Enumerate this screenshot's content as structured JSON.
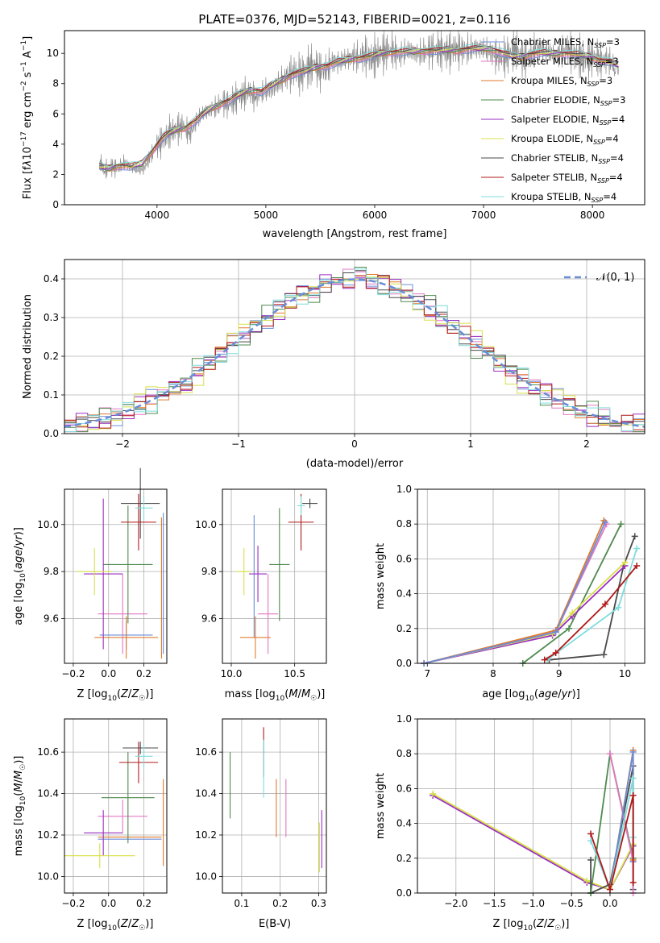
{
  "figure": {
    "title": "PLATE=0376, MJD=52143, FIBERID=0021, z=0.116"
  },
  "chart_data": [
    {
      "type": "line",
      "panel": "spectrum",
      "xlabel": "wavelength [Angstrom, rest frame]",
      "ylabel": "Flux [f_λ10^-17 erg cm^-2 s^-1 A^-1]",
      "xlim": [
        3150,
        8480
      ],
      "ylim": [
        0,
        11.5
      ],
      "xticks": [
        4000,
        5000,
        6000,
        7000,
        8000
      ],
      "yticks": [
        0,
        2,
        4,
        6,
        8,
        10
      ],
      "grid": false,
      "legend_position": "top-right",
      "data": {
        "name": "",
        "color": "#808080",
        "x": [
          3470,
          3520,
          3580,
          3640,
          3700,
          3760,
          3820,
          3880,
          3940,
          4000,
          4060,
          4120,
          4180,
          4240,
          4300,
          4360,
          4420,
          4480,
          4540,
          4600,
          4660,
          4720,
          4780,
          4840,
          4900,
          4960,
          5020,
          5080,
          5140,
          5200,
          5260,
          5320,
          5380,
          5440,
          5500,
          5560,
          5620,
          5680,
          5740,
          5800,
          5860,
          5920,
          5980,
          6040,
          6100,
          6160,
          6220,
          6280,
          6340,
          6400,
          6460,
          6520,
          6580,
          6640,
          6700,
          6760,
          6820,
          6880,
          6940,
          7000,
          7060,
          7120,
          7180,
          7240,
          7300,
          7360,
          7420,
          7480,
          7540,
          7600,
          7660,
          7720,
          7780,
          7840,
          7900,
          7960,
          8020,
          8080,
          8140,
          8200,
          8240
        ],
        "y": [
          2.6,
          2.3,
          2.5,
          2.4,
          2.8,
          2.5,
          2.3,
          2.4,
          3.2,
          3.9,
          4.3,
          4.8,
          5.0,
          5.2,
          4.7,
          5.5,
          6.0,
          6.3,
          6.4,
          6.8,
          6.6,
          7.0,
          7.2,
          7.5,
          7.1,
          7.4,
          7.6,
          7.8,
          8.2,
          8.5,
          8.8,
          8.6,
          9.0,
          9.3,
          8.8,
          9.0,
          9.5,
          9.4,
          9.6,
          9.8,
          9.7,
          9.9,
          9.6,
          10.0,
          10.1,
          10.2,
          9.9,
          10.1,
          10.2,
          10.0,
          10.1,
          10.2,
          10.3,
          10.1,
          10.2,
          10.3,
          10.2,
          10.3,
          10.4,
          10.3,
          10.1,
          9.8,
          9.7,
          10.0,
          10.3,
          9.6,
          9.8,
          10.2,
          10.3,
          10.0,
          9.9,
          10.1,
          10.3,
          9.8,
          9.7,
          9.6,
          9.8,
          9.5,
          9.6,
          9.2,
          9.0
        ]
      },
      "series": [
        {
          "name": "Chabrier MILES, N_SSP=3",
          "color": "#6a8dd8"
        },
        {
          "name": "Salpeter MILES, N_SSP=3",
          "color": "#e377c2"
        },
        {
          "name": "Kroupa MILES, N_SSP=3",
          "color": "#e07a2e"
        },
        {
          "name": "Chabrier ELODIE, N_SSP=3",
          "color": "#4f8a4f"
        },
        {
          "name": "Salpeter ELODIE, N_SSP=4",
          "color": "#9a2fc0"
        },
        {
          "name": "Kroupa ELODIE, N_SSP=4",
          "color": "#d8e04a"
        },
        {
          "name": "Chabrier STELIB, N_SSP=4",
          "color": "#4a4a4a"
        },
        {
          "name": "Salpeter STELIB, N_SSP=4",
          "color": "#b01818"
        },
        {
          "name": "Kroupa STELIB, N_SSP=4",
          "color": "#7fdcdc"
        }
      ],
      "model": {
        "color": "#7fdcdc",
        "x": [
          3470,
          3560,
          3660,
          3760,
          3860,
          3960,
          4060,
          4160,
          4260,
          4360,
          4460,
          4560,
          4660,
          4760,
          4860,
          4960,
          5060,
          5160,
          5260,
          5360,
          5460,
          5560,
          5660,
          5760,
          5860,
          5960,
          6060,
          6160,
          6260,
          6360,
          6460,
          6560,
          6660,
          6760,
          6860,
          6960,
          7060,
          7160,
          7260,
          7360,
          7460,
          7560,
          7660,
          7760,
          7860,
          7960,
          8060,
          8160,
          8240
        ],
        "y": [
          2.5,
          2.4,
          2.6,
          2.5,
          2.7,
          3.6,
          4.5,
          4.9,
          5.1,
          5.6,
          6.2,
          6.6,
          6.9,
          7.3,
          7.6,
          7.5,
          7.9,
          8.3,
          8.7,
          8.8,
          9.1,
          9.2,
          9.4,
          9.6,
          9.7,
          9.8,
          10.0,
          10.1,
          10.1,
          10.1,
          10.2,
          10.2,
          10.2,
          10.2,
          10.3,
          10.3,
          10.3,
          10.1,
          9.8,
          9.8,
          10.0,
          10.0,
          10.0,
          10.0,
          9.9,
          9.8,
          9.6,
          9.4,
          9.2
        ]
      }
    },
    {
      "type": "line",
      "panel": "residual-histogram",
      "xlabel": "(data-model)/error",
      "ylabel": "Normed distribution",
      "xlim": [
        -2.5,
        2.5
      ],
      "ylim": [
        0,
        0.45
      ],
      "xticks": [
        -2,
        -1,
        0,
        1,
        2
      ],
      "yticks": [
        0.0,
        0.1,
        0.2,
        0.3,
        0.4
      ],
      "grid": true,
      "legend_position": "top-right",
      "reference_curve": {
        "name": "𝒩(0, 1)",
        "color": "#6a8dd8",
        "style": "dashed",
        "mean": 0,
        "sigma": 1
      },
      "bin_edges": [
        -2.5,
        -2.4,
        -2.3,
        -2.2,
        -2.1,
        -2.0,
        -1.9,
        -1.8,
        -1.7,
        -1.6,
        -1.5,
        -1.4,
        -1.3,
        -1.2,
        -1.1,
        -1.0,
        -0.9,
        -0.8,
        -0.7,
        -0.6,
        -0.5,
        -0.4,
        -0.3,
        -0.2,
        -0.1,
        0.0,
        0.1,
        0.2,
        0.3,
        0.4,
        0.5,
        0.6,
        0.7,
        0.8,
        0.9,
        1.0,
        1.1,
        1.2,
        1.3,
        1.4,
        1.5,
        1.6,
        1.7,
        1.8,
        1.9,
        2.0,
        2.1,
        2.2,
        2.3,
        2.4,
        2.5
      ],
      "histograms": [
        {
          "color": "#6a8dd8",
          "offset": 0.012
        },
        {
          "color": "#e377c2",
          "offset": -0.01
        },
        {
          "color": "#e07a2e",
          "offset": 0.005
        },
        {
          "color": "#4f8a4f",
          "offset": -0.018
        },
        {
          "color": "#9a2fc0",
          "offset": 0.015
        },
        {
          "color": "#d8e04a",
          "offset": 0.02
        },
        {
          "color": "#4a4a4a",
          "offset": -0.006
        },
        {
          "color": "#b01818",
          "offset": 0.008
        },
        {
          "color": "#7fdcdc",
          "offset": -0.014
        }
      ]
    },
    {
      "type": "scatter",
      "panel": "age-vs-Z",
      "xlabel": "Z [log₁₀(Z/Z☉)]",
      "ylabel": "age  [log₁₀(age/yr)]",
      "xlim": [
        -0.25,
        0.33
      ],
      "ylim": [
        9.41,
        10.15
      ],
      "xticks": [
        -0.2,
        0.0,
        0.2
      ],
      "yticks": [
        9.6,
        9.8,
        10.0
      ],
      "grid": true,
      "points": [
        {
          "color": "#6a8dd8",
          "x": 0.1,
          "xerr": 0.15,
          "y": 9.53,
          "yerr": 0.06
        },
        {
          "color": "#e377c2",
          "x": 0.08,
          "xerr": 0.14,
          "y": 9.62,
          "yerr": 0.17
        },
        {
          "color": "#e07a2e",
          "x": 0.1,
          "xerr": 0.18,
          "y": 9.52,
          "yerr": 0.09
        },
        {
          "color": "#4f8a4f",
          "x": 0.11,
          "xerr": 0.14,
          "y": 9.83,
          "yerr": 0.25
        },
        {
          "color": "#9a2fc0",
          "x": -0.03,
          "xerr": 0.11,
          "y": 9.79,
          "yerr": 0.32
        },
        {
          "color": "#d8e04a",
          "x": -0.08,
          "xerr": 0.1,
          "y": 9.8,
          "yerr": 0.1
        },
        {
          "color": "#4a4a4a",
          "x": 0.18,
          "xerr": 0.11,
          "y": 10.09,
          "yerr": 0.15
        },
        {
          "color": "#b01818",
          "x": 0.17,
          "xerr": 0.1,
          "y": 10.01,
          "yerr": 0.12
        },
        {
          "color": "#7fdcdc",
          "x": 0.2,
          "xerr": 0.05,
          "y": 10.07,
          "yerr": 0.05
        },
        {
          "color": "#e07a2e",
          "x": 0.3,
          "xerr": 0.0,
          "y": 9.73,
          "yerr": 0.3
        },
        {
          "color": "#6a8dd8",
          "x": 0.31,
          "xerr": 0.0,
          "y": 9.75,
          "yerr": 0.3
        }
      ]
    },
    {
      "type": "scatter",
      "panel": "age-vs-mass",
      "xlabel": "mass [log₁₀(M/M☉)]",
      "ylabel": "",
      "xlim": [
        9.93,
        10.75
      ],
      "ylim": [
        9.41,
        10.15
      ],
      "xticks": [
        10.0,
        10.5
      ],
      "yticks": [
        9.6,
        9.8,
        10.0
      ],
      "grid": true,
      "points": [
        {
          "color": "#6a8dd8",
          "x": 10.18,
          "xerr": 0.0,
          "y": 9.78,
          "yerr": 0.26
        },
        {
          "color": "#e377c2",
          "x": 10.29,
          "xerr": 0.08,
          "y": 9.62,
          "yerr": 0.17
        },
        {
          "color": "#e07a2e",
          "x": 10.19,
          "xerr": 0.12,
          "y": 9.52,
          "yerr": 0.09
        },
        {
          "color": "#4f8a4f",
          "x": 10.38,
          "xerr": 0.08,
          "y": 9.83,
          "yerr": 0.24
        },
        {
          "color": "#9a2fc0",
          "x": 10.21,
          "xerr": 0.07,
          "y": 9.79,
          "yerr": 0.12
        },
        {
          "color": "#d8e04a",
          "x": 10.1,
          "xerr": 0.06,
          "y": 9.8,
          "yerr": 0.1
        },
        {
          "color": "#4a4a4a",
          "x": 10.62,
          "xerr": 0.06,
          "y": 10.09,
          "yerr": 0.02
        },
        {
          "color": "#b01818",
          "x": 10.55,
          "xerr": 0.1,
          "y": 10.01,
          "yerr": 0.12
        },
        {
          "color": "#7fdcdc",
          "x": 10.55,
          "xerr": 0.03,
          "y": 10.08,
          "yerr": 0.04
        }
      ]
    },
    {
      "type": "line",
      "panel": "mass-weight-vs-age",
      "xlabel": "age  [log₁₀(age/yr)]",
      "ylabel": "mass weight",
      "xlim": [
        6.85,
        10.3
      ],
      "ylim": [
        0,
        1.0
      ],
      "xticks": [
        7,
        8,
        9,
        10
      ],
      "yticks": [
        0.0,
        0.2,
        0.4,
        0.6,
        0.8,
        1.0
      ],
      "grid": true,
      "series": [
        {
          "color": "#4a4a4a",
          "x": [
            8.85,
            9.68,
            9.98,
            10.15
          ],
          "y": [
            0.02,
            0.05,
            0.56,
            0.73
          ]
        },
        {
          "color": "#4f8a4f",
          "x": [
            8.45,
            9.15,
            9.94
          ],
          "y": [
            0.0,
            0.2,
            0.8
          ]
        },
        {
          "color": "#9a2fc0",
          "x": [
            6.95,
            8.9,
            9.2,
            10.0
          ],
          "y": [
            0.0,
            0.16,
            0.27,
            0.56
          ]
        },
        {
          "color": "#d8e04a",
          "x": [
            6.95,
            8.9,
            9.2,
            10.0
          ],
          "y": [
            0.0,
            0.17,
            0.29,
            0.58
          ]
        },
        {
          "color": "#e377c2",
          "x": [
            6.95,
            8.95,
            9.72
          ],
          "y": [
            0.0,
            0.18,
            0.8
          ]
        },
        {
          "color": "#e07a2e",
          "x": [
            6.95,
            8.95,
            9.68
          ],
          "y": [
            0.0,
            0.19,
            0.82
          ]
        },
        {
          "color": "#6a8dd8",
          "x": [
            6.95,
            8.95,
            9.7
          ],
          "y": [
            0.0,
            0.18,
            0.81
          ]
        },
        {
          "color": "#7fdcdc",
          "x": [
            8.82,
            9.9,
            10.18
          ],
          "y": [
            0.02,
            0.32,
            0.66
          ]
        },
        {
          "color": "#b01818",
          "x": [
            8.78,
            8.95,
            9.7,
            10.18
          ],
          "y": [
            0.02,
            0.06,
            0.34,
            0.56
          ]
        }
      ]
    },
    {
      "type": "scatter",
      "panel": "mass-vs-Z",
      "xlabel": "Z [log₁₀(Z/Z☉)]",
      "ylabel": "mass [log₁₀(M/M☉)]",
      "xlim": [
        -0.25,
        0.33
      ],
      "ylim": [
        9.92,
        10.76
      ],
      "xticks": [
        -0.2,
        0.0,
        0.2
      ],
      "yticks": [
        10.0,
        10.2,
        10.4,
        10.6
      ],
      "grid": true,
      "points": [
        {
          "color": "#6a8dd8",
          "x": 0.12,
          "xerr": 0.18,
          "y": 10.18,
          "yerr": 0.0
        },
        {
          "color": "#e377c2",
          "x": 0.08,
          "xerr": 0.14,
          "y": 10.29,
          "yerr": 0.08
        },
        {
          "color": "#e07a2e",
          "x": 0.12,
          "xerr": 0.18,
          "y": 10.19,
          "yerr": 0.0
        },
        {
          "color": "#4f8a4f",
          "x": 0.11,
          "xerr": 0.15,
          "y": 10.38,
          "yerr": 0.22
        },
        {
          "color": "#9a2fc0",
          "x": -0.03,
          "xerr": 0.11,
          "y": 10.21,
          "yerr": 0.11
        },
        {
          "color": "#d8e04a",
          "x": -0.05,
          "xerr": 0.2,
          "y": 10.1,
          "yerr": 0.06
        },
        {
          "color": "#4a4a4a",
          "x": 0.18,
          "xerr": 0.1,
          "y": 10.62,
          "yerr": 0.03
        },
        {
          "color": "#b01818",
          "x": 0.17,
          "xerr": 0.11,
          "y": 10.55,
          "yerr": 0.1
        },
        {
          "color": "#7fdcdc",
          "x": 0.2,
          "xerr": 0.05,
          "y": 10.58,
          "yerr": 0.06
        },
        {
          "color": "#e07a2e",
          "x": 0.31,
          "xerr": 0.0,
          "y": 10.26,
          "yerr": 0.21
        }
      ]
    },
    {
      "type": "scatter",
      "panel": "mass-vs-EBV",
      "xlabel": "E(B-V)",
      "ylabel": "",
      "xlim": [
        0.05,
        0.32
      ],
      "ylim": [
        9.92,
        10.76
      ],
      "xticks": [
        0.1,
        0.2,
        0.3
      ],
      "yticks": [
        10.0,
        10.2,
        10.4,
        10.6
      ],
      "grid": true,
      "points": [
        {
          "color": "#4f8a4f",
          "x": 0.07,
          "xerr": 0.0,
          "y": 10.44,
          "yerr": 0.16
        },
        {
          "color": "#b01818",
          "x": 0.157,
          "xerr": 0.0,
          "y": 10.6,
          "yerr": 0.12
        },
        {
          "color": "#7fdcdc",
          "x": 0.157,
          "xerr": 0.0,
          "y": 10.52,
          "yerr": 0.14
        },
        {
          "color": "#e07a2e",
          "x": 0.19,
          "xerr": 0.0,
          "y": 10.33,
          "yerr": 0.14
        },
        {
          "color": "#e377c2",
          "x": 0.215,
          "xerr": 0.0,
          "y": 10.33,
          "yerr": 0.14
        },
        {
          "color": "#d8e04a",
          "x": 0.302,
          "xerr": 0.0,
          "y": 10.14,
          "yerr": 0.12
        },
        {
          "color": "#9a2fc0",
          "x": 0.308,
          "xerr": 0.0,
          "y": 10.18,
          "yerr": 0.14
        }
      ]
    },
    {
      "type": "line",
      "panel": "mass-weight-vs-Z",
      "xlabel": "Z [log₁₀(Z/Z☉)]",
      "ylabel": "mass weight",
      "xlim": [
        -2.5,
        0.45
      ],
      "ylim": [
        0,
        1.0
      ],
      "xticks": [
        -2.0,
        -1.5,
        -1.0,
        -0.5,
        0.0
      ],
      "yticks": [
        0.0,
        0.2,
        0.4,
        0.6,
        0.8,
        1.0
      ],
      "grid": true,
      "series": [
        {
          "color": "#9a2fc0",
          "x": [
            -2.3,
            -0.3,
            0.0,
            0.3
          ],
          "y": [
            0.56,
            0.06,
            0.02,
            0.27
          ]
        },
        {
          "color": "#d8e04a",
          "x": [
            -2.3,
            -0.3,
            0.0,
            0.3
          ],
          "y": [
            0.57,
            0.07,
            0.02,
            0.28
          ]
        },
        {
          "color": "#4a4a4a",
          "x": [
            -0.25,
            -0.25,
            0.0,
            0.3,
            0.3
          ],
          "y": [
            0.19,
            0.0,
            0.05,
            0.73,
            0.02
          ]
        },
        {
          "color": "#4f8a4f",
          "x": [
            -0.25,
            0.0,
            0.3
          ],
          "y": [
            0.0,
            0.8,
            0.2
          ]
        },
        {
          "color": "#e377c2",
          "x": [
            0.0,
            0.3,
            0.3
          ],
          "y": [
            0.8,
            0.18,
            0.0
          ]
        },
        {
          "color": "#e07a2e",
          "x": [
            0.0,
            0.3,
            0.3
          ],
          "y": [
            0.02,
            0.82,
            0.19
          ]
        },
        {
          "color": "#6a8dd8",
          "x": [
            0.0,
            0.3,
            0.3
          ],
          "y": [
            0.02,
            0.81,
            0.18
          ]
        },
        {
          "color": "#7fdcdc",
          "x": [
            -0.25,
            0.0,
            0.3,
            0.3
          ],
          "y": [
            0.3,
            0.02,
            0.66,
            0.32
          ]
        },
        {
          "color": "#b01818",
          "x": [
            -0.25,
            0.0,
            0.3,
            0.3
          ],
          "y": [
            0.34,
            0.02,
            0.56,
            0.06
          ]
        }
      ]
    }
  ]
}
